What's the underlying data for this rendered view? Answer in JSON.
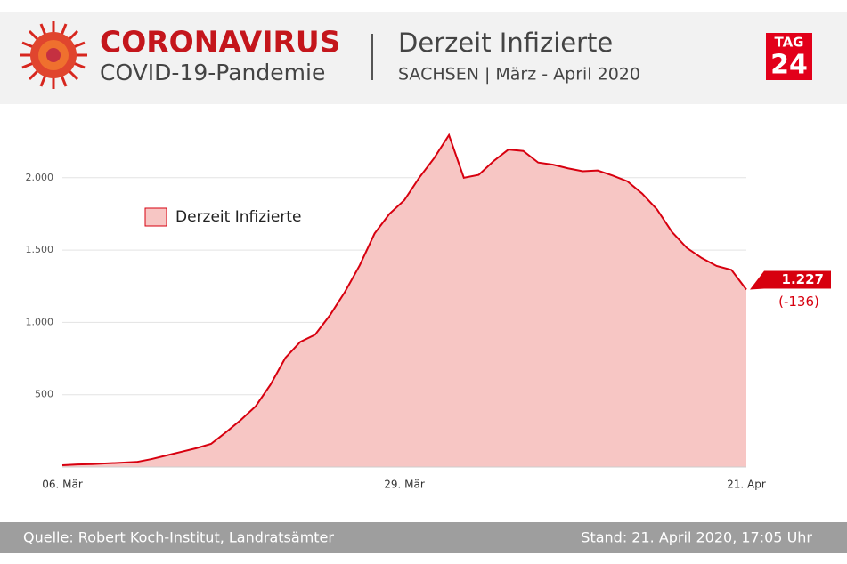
{
  "header": {
    "title": "CORONAVIRUS",
    "subtitle": "COVID-19-Pandemie",
    "logo": [
      "TAG",
      "24"
    ]
  },
  "chart_data": {
    "type": "area",
    "title": "Derzeit Infizierte",
    "subtitle": "SACHSEN | März - April 2020",
    "categories": [
      "06. Mär",
      null,
      null,
      null,
      null,
      null,
      null,
      null,
      null,
      null,
      null,
      null,
      null,
      null,
      null,
      null,
      null,
      null,
      null,
      null,
      null,
      null,
      null,
      "29. Mär",
      null,
      null,
      null,
      null,
      null,
      null,
      null,
      null,
      null,
      null,
      null,
      null,
      null,
      null,
      null,
      null,
      null,
      null,
      null,
      null,
      null,
      null,
      "21. Apr"
    ],
    "series": [
      {
        "name": "Derzeit Infizierte",
        "color": "#d7000f",
        "fill": "#f7c6c4",
        "values": [
          12,
          18,
          20,
          25,
          30,
          35,
          55,
          80,
          105,
          130,
          160,
          240,
          325,
          420,
          570,
          755,
          865,
          915,
          1050,
          1210,
          1395,
          1615,
          1750,
          1845,
          2000,
          2135,
          2295,
          2000,
          2020,
          2115,
          2195,
          2185,
          2105,
          2090,
          2065,
          2045,
          2050,
          2015,
          1975,
          1890,
          1780,
          1625,
          1515,
          1445,
          1390,
          1363,
          1227
        ],
        "value_labels": [
          null,
          null,
          null,
          null,
          null,
          null,
          null,
          null,
          null,
          null,
          null,
          null,
          null,
          null,
          null,
          null,
          null,
          null,
          null,
          null,
          null,
          null,
          null,
          null,
          null,
          null,
          null,
          null,
          null,
          null,
          null,
          null,
          null,
          null,
          null,
          null,
          null,
          null,
          null,
          null,
          null,
          null,
          null,
          null,
          null,
          null,
          "1.227"
        ]
      }
    ],
    "annotation": "(-136)",
    "ylim": [
      0,
      2500
    ],
    "yticks": [
      {
        "value": 500,
        "label": "500"
      },
      {
        "value": 1000,
        "label": "1.000"
      },
      {
        "value": 1500,
        "label": "1.500"
      },
      {
        "value": 2000,
        "label": "2.000"
      }
    ],
    "grid": true
  },
  "footer": {
    "source": "Quelle: Robert Koch-Institut, Landratsämter",
    "date": "Stand: 21. April 2020, 17:05 Uhr"
  }
}
